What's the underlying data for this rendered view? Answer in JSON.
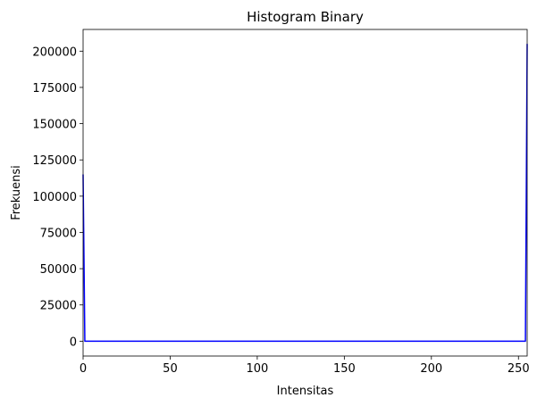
{
  "chart_data": {
    "type": "line",
    "title": "Histogram Binary",
    "xlabel": "Intensitas",
    "ylabel": "Frekuensi",
    "xlim": [
      0,
      255
    ],
    "ylim": [
      -10236,
      214964
    ],
    "x_ticks": [
      0,
      50,
      100,
      150,
      200,
      250
    ],
    "y_ticks": [
      0,
      25000,
      50000,
      75000,
      100000,
      125000,
      150000,
      175000,
      200000
    ],
    "grid": false,
    "legend": "none",
    "series": [
      {
        "color": "#0000ff",
        "points": [
          [
            0,
            115000
          ],
          [
            1,
            0
          ],
          [
            254,
            0
          ],
          [
            255,
            205000
          ]
        ]
      }
    ]
  }
}
